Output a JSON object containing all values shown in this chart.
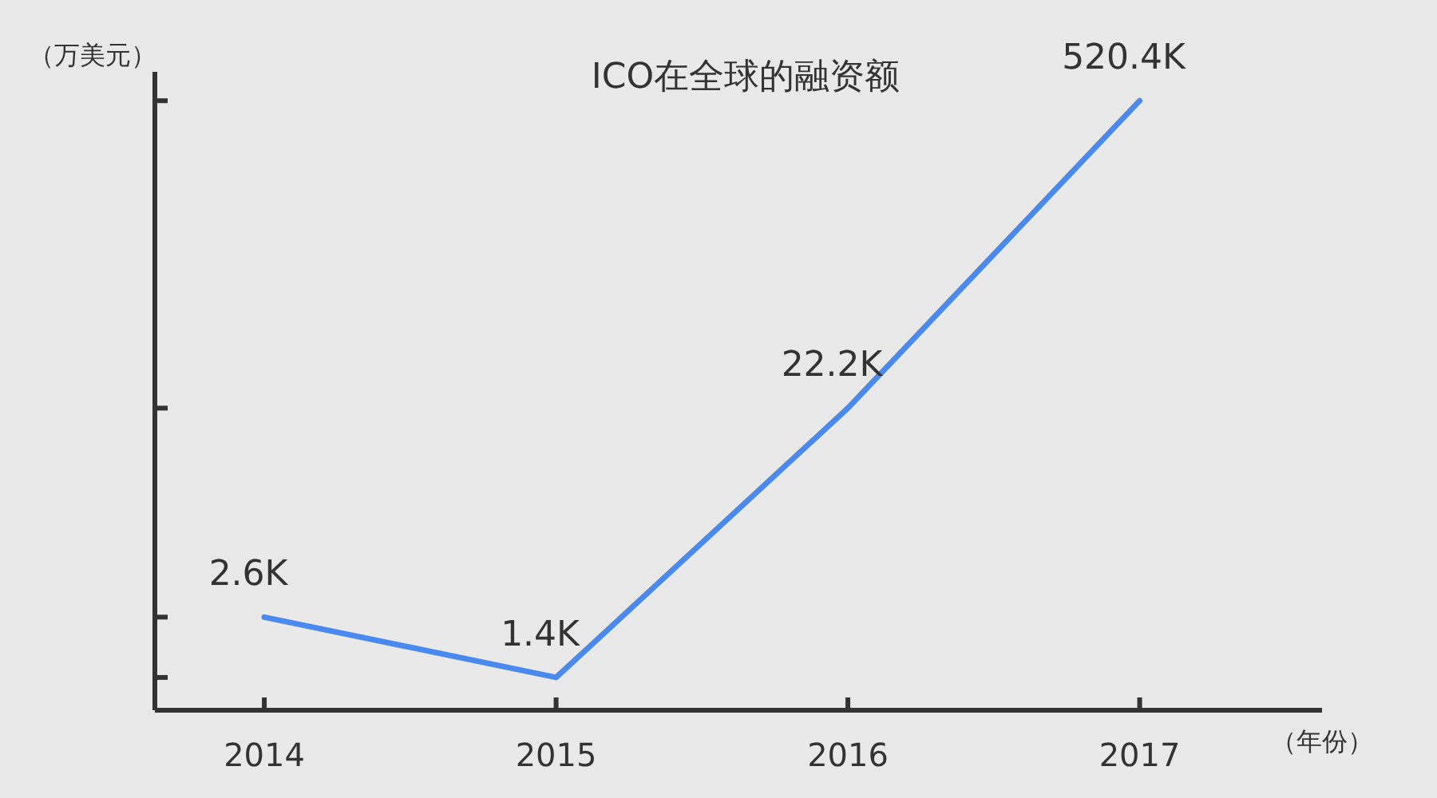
{
  "chart_data": {
    "type": "line",
    "title": "ICO在全球的融资额",
    "xlabel": "（年份）",
    "ylabel": "（万美元）",
    "categories": [
      "2014",
      "2015",
      "2016",
      "2017"
    ],
    "series": [
      {
        "color": "#4a8af0",
        "values": [
          2600,
          1400,
          22200,
          520400
        ],
        "value_labels": [
          "2.6K",
          "1.4K",
          "22.2K",
          "520.4K"
        ]
      }
    ],
    "log": "y",
    "ylim": [
      1000,
      700000
    ],
    "yticks": [
      {
        "value": 1400,
        "label": null
      },
      {
        "value": 2600,
        "label": null
      },
      {
        "value": 22200,
        "label": null
      },
      {
        "value": 520400,
        "label": null
      }
    ],
    "marker": "none",
    "line_style": "solid",
    "grid": false
  }
}
